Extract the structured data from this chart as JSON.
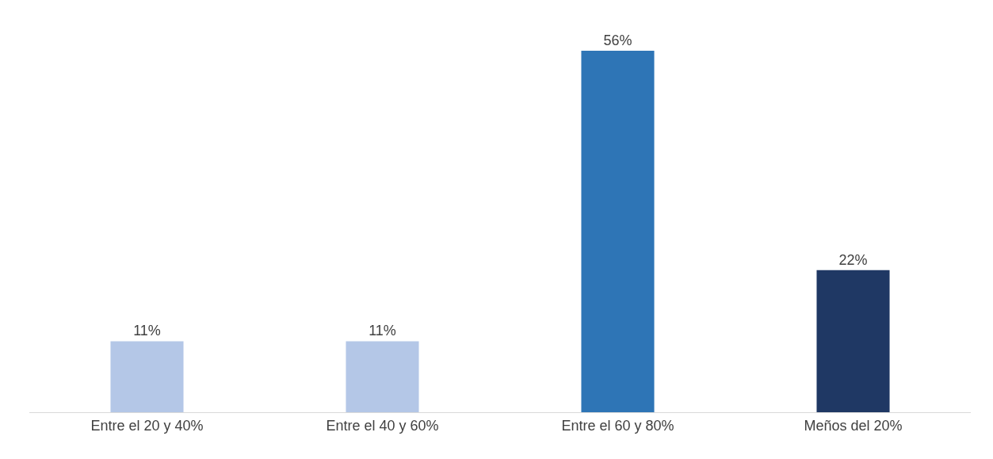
{
  "chart_data": {
    "type": "bar",
    "categories": [
      "Entre el 20 y 40%",
      "Entre el 40 y 60%",
      "Entre el 60 y 80%",
      "Meños del 20%"
    ],
    "values": [
      11,
      11,
      56,
      22
    ],
    "colors": [
      "#b4c7e7",
      "#b4c7e7",
      "#2e75b6",
      "#1f3864"
    ],
    "value_labels": [
      "11%",
      "11%",
      "56%",
      "22%"
    ]
  }
}
